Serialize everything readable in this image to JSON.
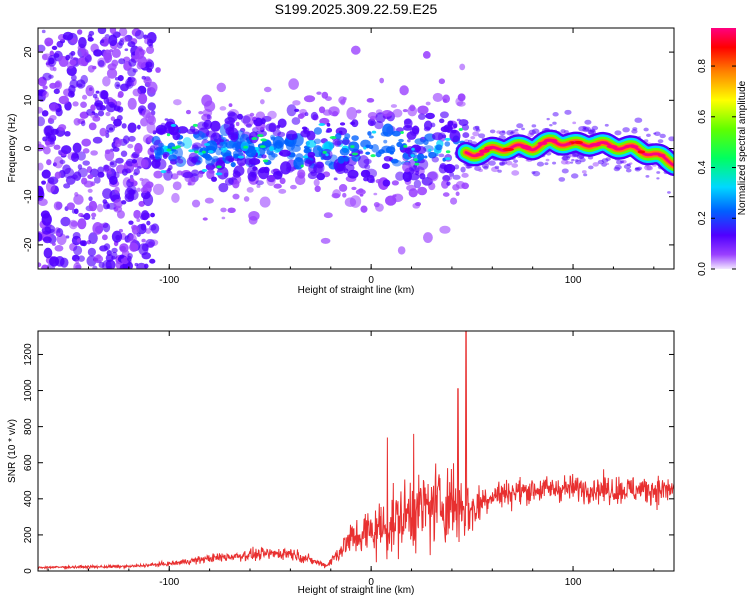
{
  "title": "S199.2025.309.22.59.E25",
  "chart_data": [
    {
      "type": "heatmap",
      "name": "spectrogram",
      "xlabel": "Height of straight line (km)",
      "ylabel": "Frequency (Hz)",
      "xlim": [
        -165,
        150
      ],
      "ylim": [
        -25,
        25
      ],
      "xticks": [
        -100,
        0,
        100
      ],
      "yticks": [
        -20,
        -10,
        0,
        10,
        20
      ],
      "colorbar": {
        "label": "Normalized spectral amplitude",
        "range": [
          0,
          0.95
        ],
        "ticks": [
          0.0,
          0.2,
          0.4,
          0.6,
          0.8
        ]
      },
      "regions": [
        {
          "x_start": -165,
          "x_end": -107,
          "description": "broadband noise",
          "amplitude": 0.05
        },
        {
          "x_start": -107,
          "x_end": 47,
          "description": "scattered energy around 0 Hz",
          "amplitude": 0.2
        },
        {
          "x_start": 47,
          "x_end": 150,
          "description": "coherent tone near 0-2 Hz",
          "amplitude": 0.8
        }
      ],
      "ridge_x": [
        50,
        60,
        70,
        80,
        90,
        100,
        110,
        120,
        130,
        140,
        150
      ],
      "ridge_y": [
        -1.2,
        -0.2,
        0.3,
        0.2,
        1.5,
        0.8,
        1.0,
        0.5,
        0.0,
        -1.2,
        -3.0
      ]
    },
    {
      "type": "line",
      "name": "snr",
      "xlabel": "Height of straight line (km)",
      "ylabel": "SNR (10 * v/v)",
      "xlim": [
        -165,
        150
      ],
      "ylim": [
        0,
        1330
      ],
      "xticks": [
        -100,
        0,
        100
      ],
      "yticks": [
        0,
        200,
        400,
        600,
        800,
        1000,
        1200
      ],
      "color": "#e83030",
      "envelope_x": [
        -165,
        -120,
        -100,
        -80,
        -60,
        -40,
        -30,
        -22,
        -10,
        0,
        10,
        20,
        30,
        40,
        47,
        50,
        55,
        60,
        80,
        100,
        120,
        150
      ],
      "envelope_mean": [
        20,
        25,
        40,
        70,
        90,
        100,
        60,
        30,
        180,
        220,
        260,
        330,
        360,
        380,
        360,
        330,
        390,
        420,
        450,
        460,
        450,
        450
      ],
      "envelope_spread": [
        8,
        10,
        15,
        30,
        40,
        45,
        30,
        15,
        120,
        180,
        220,
        260,
        280,
        300,
        260,
        180,
        120,
        100,
        90,
        90,
        100,
        100
      ],
      "peaks": [
        {
          "x": 47,
          "y": 1330
        },
        {
          "x": 43,
          "y": 1010
        },
        {
          "x": 8,
          "y": 740
        },
        {
          "x": 21,
          "y": 760
        }
      ]
    }
  ]
}
